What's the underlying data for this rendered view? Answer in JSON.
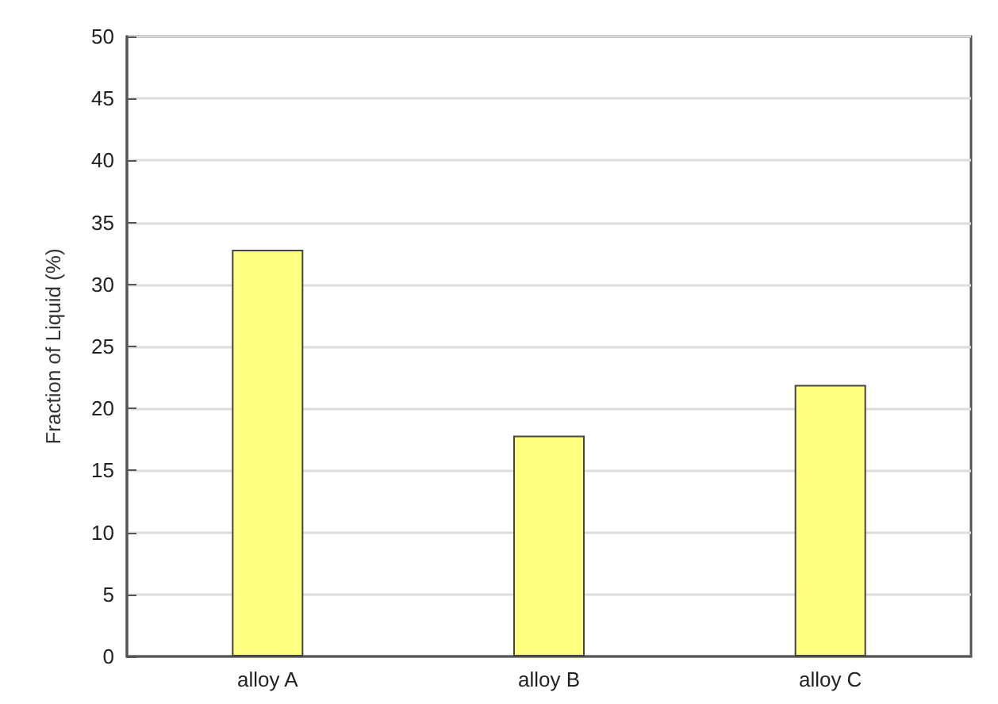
{
  "chart_data": {
    "type": "bar",
    "ylabel": "Fraction of Liquid (%)",
    "categories": [
      "alloy A",
      "alloy B",
      "alloy C"
    ],
    "values": [
      32.8,
      17.8,
      21.9
    ],
    "color": "#ffff80",
    "ylim": [
      0,
      50
    ],
    "yticks": [
      0,
      5,
      10,
      15,
      20,
      25,
      30,
      35,
      40,
      45,
      50
    ],
    "grid": "y"
  }
}
